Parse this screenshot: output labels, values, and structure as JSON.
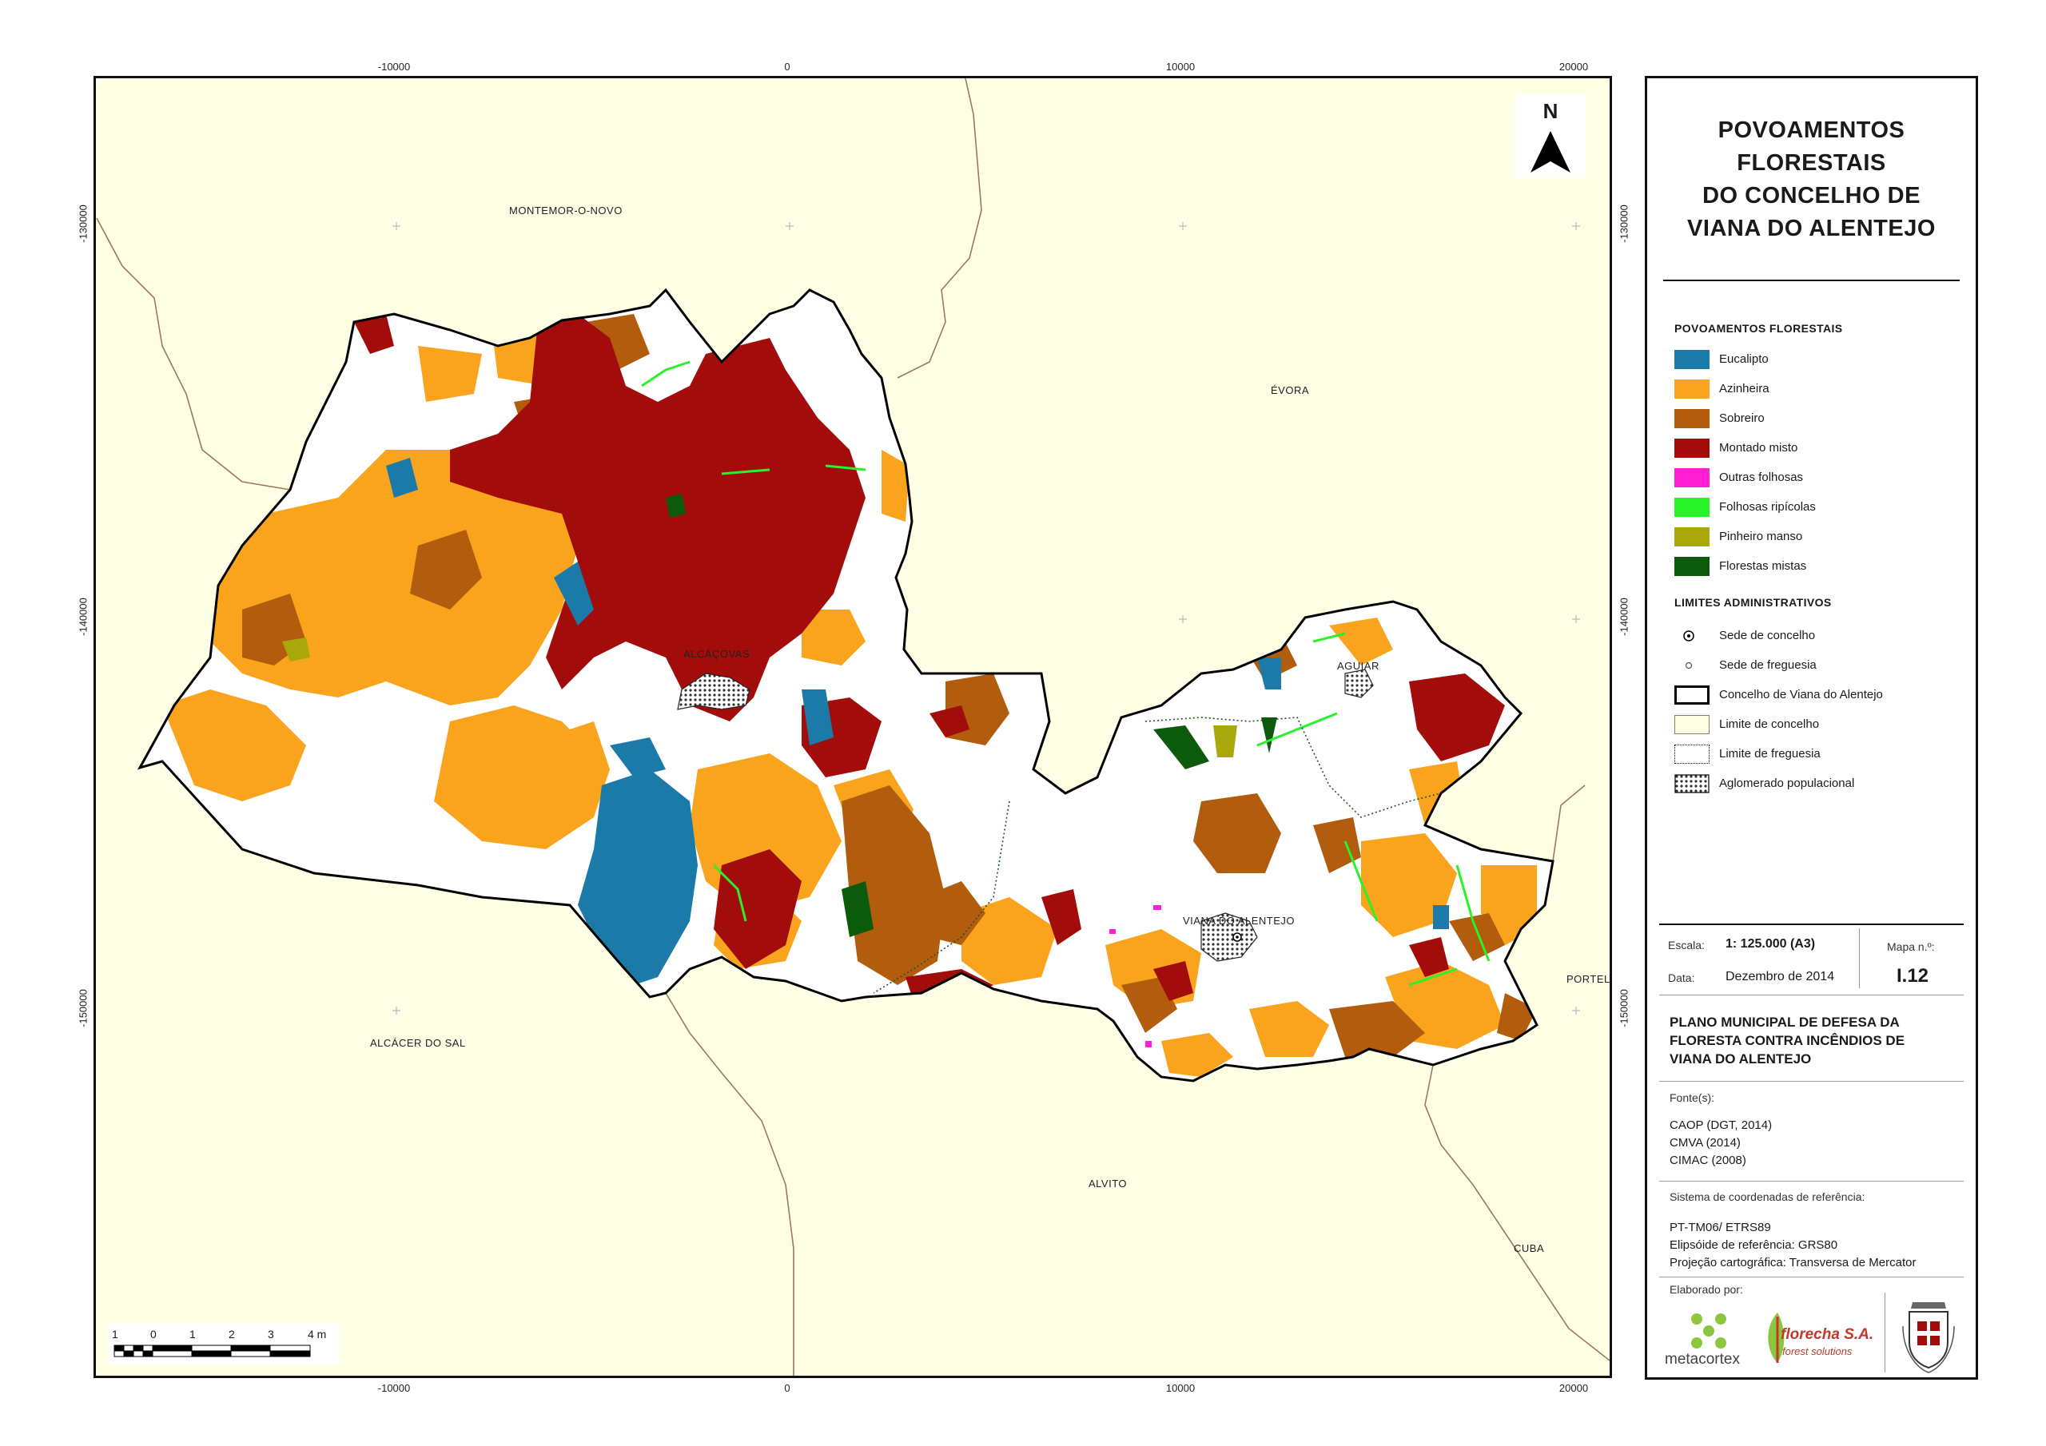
{
  "colors": {
    "eucalipto": "#1b7aa8",
    "azinheira": "#f9a41c",
    "sobreiro": "#b25d0e",
    "montado_misto": "#a20d0c",
    "outras_folhosas": "#ff1fd0",
    "folhosas_ripicolas": "#28f228",
    "pinheiro_manso": "#a8a80a",
    "florestas_mistas": "#0c5a0c",
    "map_background": "#ffffe6",
    "boundary_brown": "#9a7a5a"
  },
  "axes": {
    "x_ticks_top": [
      "-10000",
      "0",
      "10000",
      "20000"
    ],
    "x_ticks_bottom": [
      "-10000",
      "0",
      "10000",
      "20000"
    ],
    "y_ticks_left": [
      "-130000",
      "-140000",
      "-150000"
    ],
    "y_ticks_right": [
      "-130000",
      "-140000",
      "-150000"
    ]
  },
  "places": {
    "montemor": "MONTEMOR-O-NOVO",
    "evora": "ÉVORA",
    "alcacovas": "ALCÁÇOVAS",
    "aguiar": "AGUIAR",
    "viana": "VIANA DO ALENTEJO",
    "portel": "PORTEL",
    "alcacer": "ALCÁCER DO SAL",
    "alvito": "ALVITO",
    "cuba": "CUBA"
  },
  "north_arrow": {
    "label": "N"
  },
  "scalebar": {
    "labels": [
      "1",
      "0",
      "1",
      "2",
      "3",
      "4 m"
    ]
  },
  "panel": {
    "title_lines": [
      "POVOAMENTOS",
      "FLORESTAIS",
      "DO CONCELHO DE",
      "VIANA DO ALENTEJO"
    ],
    "legend_forest_title": "POVOAMENTOS FLORESTAIS",
    "legend_forest": [
      {
        "label": "Eucalipto",
        "color": "#1b7aa8"
      },
      {
        "label": "Azinheira",
        "color": "#f9a41c"
      },
      {
        "label": "Sobreiro",
        "color": "#b25d0e"
      },
      {
        "label": "Montado misto",
        "color": "#a20d0c"
      },
      {
        "label": "Outras folhosas",
        "color": "#ff1fd0"
      },
      {
        "label": "Folhosas ripícolas",
        "color": "#28f228"
      },
      {
        "label": "Pinheiro manso",
        "color": "#a8a80a"
      },
      {
        "label": "Florestas mistas",
        "color": "#0c5a0c"
      }
    ],
    "legend_admin_title": "LIMITES ADMINISTRATIVOS",
    "legend_admin": [
      {
        "label": "Sede de concelho",
        "symbol": "sede-concelho-icon"
      },
      {
        "label": "Sede de freguesia",
        "symbol": "sede-freguesia-icon"
      },
      {
        "label": "Concelho de Viana do Alentejo",
        "symbol": "concelho-boundary-icon"
      },
      {
        "label": "Limite de concelho",
        "symbol": "limite-concelho-icon"
      },
      {
        "label": "Limite de freguesia",
        "symbol": "limite-freguesia-icon"
      },
      {
        "label": "Aglomerado populacional",
        "symbol": "aglomerado-icon"
      }
    ],
    "escala_label": "Escala:",
    "escala_value": "1: 125.000 (A3)",
    "data_label": "Data:",
    "data_value": "Dezembro de 2014",
    "mapa_label": "Mapa n.º:",
    "mapa_value": "I.12",
    "plan_lines": [
      "PLANO MUNICIPAL DE DEFESA DA",
      "FLORESTA CONTRA INCÊNDIOS DE",
      "VIANA DO ALENTEJO"
    ],
    "fontes_label": "Fonte(s):",
    "fontes": [
      "CAOP (DGT, 2014)",
      "CMVA (2014)",
      "CIMAC (2008)"
    ],
    "sistema_label": "Sistema de coordenadas de referência:",
    "sistema": [
      "PT-TM06/ ETRS89",
      "Elipsóide de referência: GRS80",
      "Projeção cartográfica: Transversa de Mercator"
    ],
    "elaborado_label": "Elaborado por:",
    "logo_metacortex": "metacortex",
    "logo_florecha": "florecha S.A.",
    "logo_florecha_sub": "forest solutions"
  }
}
